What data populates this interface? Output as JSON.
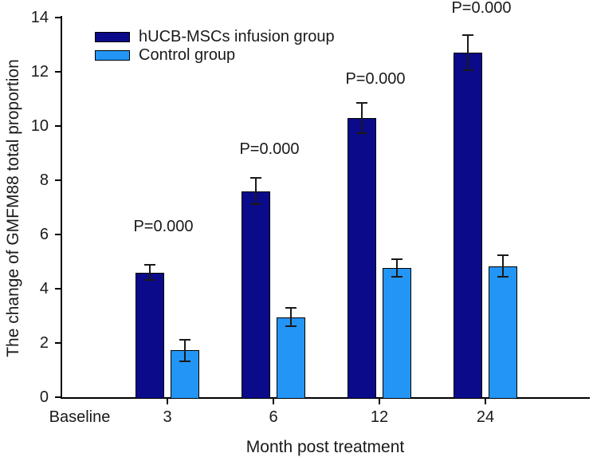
{
  "figure": {
    "background": "#ffffff",
    "text_color": "#1a1a1a",
    "axis_color": "#000000"
  },
  "chart_data": {
    "type": "bar",
    "title": "",
    "xlabel": "Month post treatment",
    "ylabel": "The change of GMFM88 total proportion",
    "categories": [
      "Baseline",
      "3",
      "6",
      "12",
      "24"
    ],
    "series": [
      {
        "name": "hUCB-MSCs infusion group",
        "color": "#0a0a8a",
        "values": [
          0,
          4.6,
          7.6,
          10.3,
          12.7
        ],
        "errors": [
          0,
          0.28,
          0.48,
          0.55,
          0.65
        ]
      },
      {
        "name": "Control group",
        "color": "#2395f4",
        "values": [
          0,
          1.73,
          2.95,
          4.77,
          4.83
        ],
        "errors": [
          0,
          0.4,
          0.34,
          0.33,
          0.4
        ]
      }
    ],
    "annotations": [
      {
        "category": "3",
        "text": "P=0.000",
        "y": 6.3
      },
      {
        "category": "6",
        "text": "P=0.000",
        "y": 9.15
      },
      {
        "category": "12",
        "text": "P=0.000",
        "y": 11.75
      },
      {
        "category": "24",
        "text": "P=0.000",
        "y": 14.35
      }
    ],
    "ylim": [
      0,
      14
    ],
    "y_ticks": [
      0,
      2,
      4,
      6,
      8,
      10,
      12,
      14
    ],
    "grid": false,
    "legend_position": "top-left",
    "error_bars": "both-directions"
  }
}
